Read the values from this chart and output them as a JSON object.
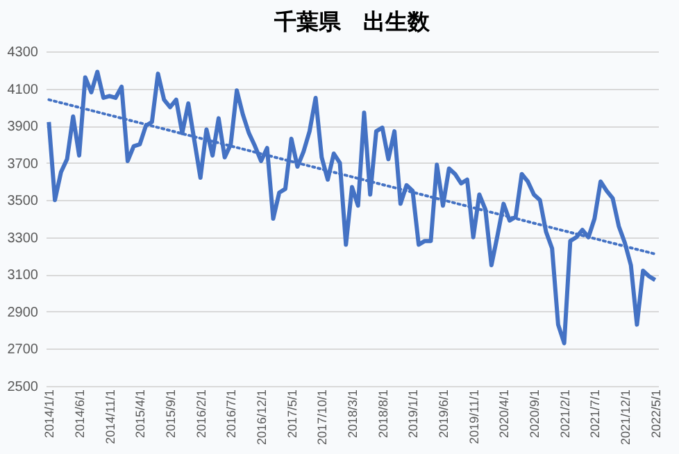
{
  "chart_data": {
    "type": "line",
    "title": "千葉県　出生数",
    "categories": [
      "2014/1/1",
      null,
      null,
      null,
      null,
      "2014/6/1",
      null,
      null,
      null,
      null,
      "2014/11/1",
      null,
      null,
      null,
      null,
      "2015/4/1",
      null,
      null,
      null,
      null,
      "2015/9/1",
      null,
      null,
      null,
      null,
      "2016/2/1",
      null,
      null,
      null,
      null,
      "2016/7/1",
      null,
      null,
      null,
      null,
      "2016/12/1",
      null,
      null,
      null,
      null,
      "2017/5/1",
      null,
      null,
      null,
      null,
      "2017/10/1",
      null,
      null,
      null,
      null,
      "2018/3/1",
      null,
      null,
      null,
      null,
      "2018/8/1",
      null,
      null,
      null,
      null,
      "2019/1/1",
      null,
      null,
      null,
      null,
      "2019/6/1",
      null,
      null,
      null,
      null,
      "2019/11/1",
      null,
      null,
      null,
      null,
      "2020/4/1",
      null,
      null,
      null,
      null,
      "2020/9/1",
      null,
      null,
      null,
      null,
      "2021/2/1",
      null,
      null,
      null,
      null,
      "2021/7/1",
      null,
      null,
      null,
      null,
      "2021/12/1",
      null,
      null,
      null,
      null,
      "2022/5/1"
    ],
    "series": [
      {
        "color": "#4472c4",
        "line_style": "solid",
        "values": [
          3920,
          3500,
          3650,
          3720,
          3950,
          3740,
          4160,
          4080,
          4190,
          4050,
          4060,
          4050,
          4110,
          3710,
          3790,
          3800,
          3900,
          3920,
          4180,
          4040,
          4000,
          4040,
          3860,
          4020,
          3820,
          3620,
          3880,
          3740,
          3940,
          3730,
          3800,
          4090,
          3960,
          3860,
          3790,
          3710,
          3780,
          3400,
          3540,
          3560,
          3830,
          3680,
          3760,
          3870,
          4050,
          3730,
          3610,
          3750,
          3700,
          3260,
          3570,
          3470,
          3970,
          3530,
          3870,
          3890,
          3720,
          3870,
          3480,
          3580,
          3550,
          3260,
          3280,
          3280,
          3690,
          3470,
          3670,
          3640,
          3590,
          3610,
          3300,
          3530,
          3450,
          3150,
          3310,
          3480,
          3390,
          3410,
          3640,
          3600,
          3530,
          3500,
          3330,
          3240,
          2830,
          2730,
          3280,
          3300,
          3340,
          3300,
          3400,
          3600,
          3550,
          3510,
          3360,
          3270,
          3150,
          2830,
          3120,
          3090,
          3070
        ]
      },
      {
        "type": "line",
        "color": "#4472c4",
        "line_style": "dotted",
        "x": [
          "2014/1/1",
          "2022/5/1"
        ],
        "values": [
          4040,
          3210
        ]
      }
    ],
    "ylim": [
      2500,
      4300
    ],
    "yticks": [
      2500,
      2700,
      2900,
      3100,
      3300,
      3500,
      3700,
      3900,
      4100,
      4300
    ],
    "grid": "y"
  }
}
